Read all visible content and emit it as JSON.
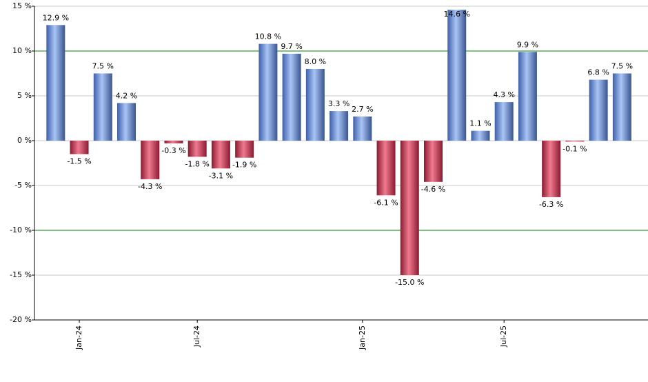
{
  "chart_data": {
    "type": "bar",
    "categories": [
      null,
      "Jan-24",
      null,
      null,
      null,
      null,
      "Jul-24",
      null,
      null,
      null,
      null,
      null,
      null,
      "Jan-25",
      null,
      null,
      null,
      null,
      null,
      "Jul-25",
      null,
      null,
      null,
      null,
      null
    ],
    "values": [
      12.9,
      -1.5,
      7.5,
      4.2,
      -4.3,
      -0.3,
      -1.8,
      -3.1,
      -1.9,
      10.8,
      9.7,
      8.0,
      3.3,
      2.7,
      -6.1,
      -15.0,
      -4.6,
      14.6,
      1.1,
      4.3,
      9.9,
      -6.3,
      -0.1,
      6.8,
      7.5
    ],
    "value_labels": [
      "12.9 %",
      "-1.5 %",
      "7.5 %",
      "4.2 %",
      "-4.3 %",
      "-0.3 %",
      "-1.8 %",
      "-3.1 %",
      "-1.9 %",
      "10.8 %",
      "9.7 %",
      "8.0 %",
      "3.3 %",
      "2.7 %",
      "-6.1 %",
      "-15.0 %",
      "-4.6 %",
      "14.6 %",
      "1.1 %",
      "4.3 %",
      "9.9 %",
      "-6.3 %",
      "-0.1 %",
      "6.8 %",
      "7.5 %"
    ],
    "positive_color": "#7fa3e6",
    "negative_color": "#d2435f",
    "ylim": [
      -20,
      15
    ],
    "yticks": [
      {
        "value": -20,
        "label": "-20 %"
      },
      {
        "value": -15,
        "label": "-15 %"
      },
      {
        "value": -10,
        "label": "-10 %"
      },
      {
        "value": -5,
        "label": "-5 %"
      },
      {
        "value": 0,
        "label": "0 %"
      },
      {
        "value": 5,
        "label": "5 %"
      },
      {
        "value": 10,
        "label": "10 %"
      },
      {
        "value": 15,
        "label": "15 %"
      }
    ],
    "grid": true,
    "reference_lines": [
      10,
      -10
    ],
    "reference_color": "#008000"
  }
}
